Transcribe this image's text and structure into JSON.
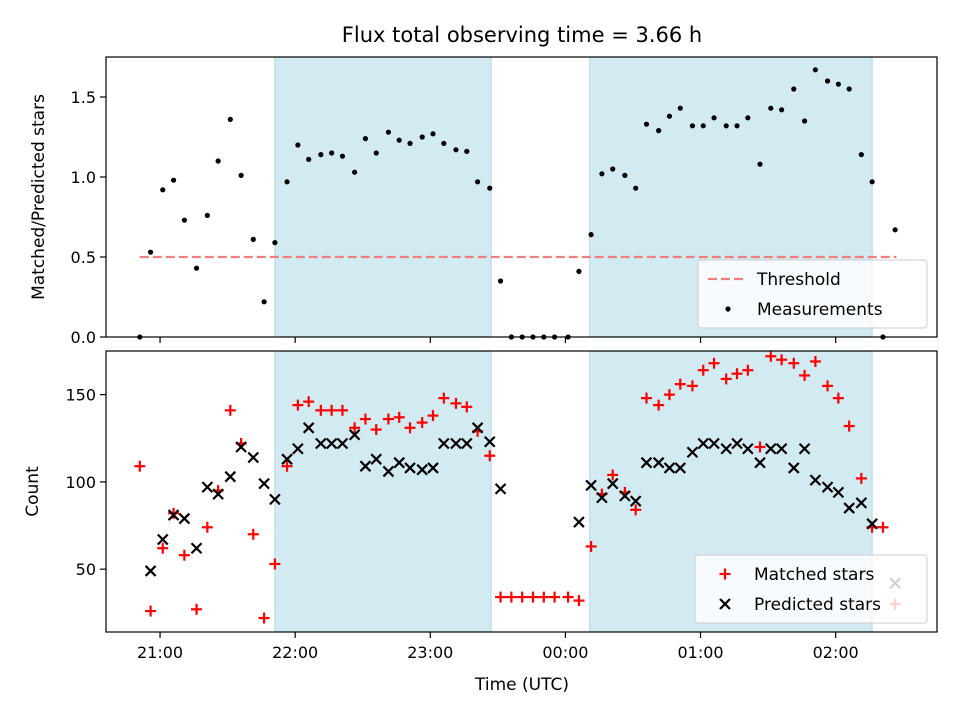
{
  "chart_data": {
    "title": "Flux total observing time = 3.66 h",
    "xlabel": "Time (UTC)",
    "x_unit": "hours since 00:00 UTC (negative = previous day)",
    "xlim": [
      -3.4,
      2.75
    ],
    "x_ticks": [
      {
        "value": -3.0,
        "label": "21:00"
      },
      {
        "value": -2.0,
        "label": "22:00"
      },
      {
        "value": -1.0,
        "label": "23:00"
      },
      {
        "value": 0.0,
        "label": "00:00"
      },
      {
        "value": 1.0,
        "label": "01:00"
      },
      {
        "value": 2.0,
        "label": "02:00"
      }
    ],
    "shaded_intervals": [
      [
        -2.15,
        -0.55
      ],
      [
        0.18,
        2.27
      ]
    ],
    "shade_color": "#add8e6",
    "panels": [
      {
        "type": "scatter",
        "ylabel": "Matched/Predicted stars",
        "ylim": [
          0,
          1.75
        ],
        "y_ticks": [
          {
            "value": 0.0,
            "label": "0.0"
          },
          {
            "value": 0.5,
            "label": "0.5"
          },
          {
            "value": 1.0,
            "label": "1.0"
          },
          {
            "value": 1.5,
            "label": "1.5"
          }
        ],
        "threshold": {
          "name": "Threshold",
          "value": 0.5,
          "x_range": [
            -3.15,
            2.45
          ],
          "color": "#f08080"
        },
        "legend_position": "lower right",
        "series": [
          {
            "name": "Measurements",
            "marker": "dot",
            "color": "#000000",
            "points": [
              [
                -3.15,
                0.0
              ],
              [
                -3.07,
                0.53
              ],
              [
                -2.98,
                0.92
              ],
              [
                -2.9,
                0.98
              ],
              [
                -2.82,
                0.73
              ],
              [
                -2.73,
                0.43
              ],
              [
                -2.65,
                0.76
              ],
              [
                -2.57,
                1.1
              ],
              [
                -2.48,
                1.36
              ],
              [
                -2.4,
                1.01
              ],
              [
                -2.31,
                0.61
              ],
              [
                -2.23,
                0.22
              ],
              [
                -2.15,
                0.59
              ],
              [
                -2.06,
                0.97
              ],
              [
                -1.98,
                1.2
              ],
              [
                -1.9,
                1.11
              ],
              [
                -1.81,
                1.14
              ],
              [
                -1.73,
                1.15
              ],
              [
                -1.65,
                1.13
              ],
              [
                -1.56,
                1.03
              ],
              [
                -1.48,
                1.24
              ],
              [
                -1.4,
                1.15
              ],
              [
                -1.31,
                1.28
              ],
              [
                -1.23,
                1.23
              ],
              [
                -1.15,
                1.21
              ],
              [
                -1.06,
                1.25
              ],
              [
                -0.98,
                1.27
              ],
              [
                -0.9,
                1.21
              ],
              [
                -0.81,
                1.17
              ],
              [
                -0.73,
                1.16
              ],
              [
                -0.65,
                0.97
              ],
              [
                -0.56,
                0.93
              ],
              [
                -0.48,
                0.35
              ],
              [
                -0.4,
                0.0
              ],
              [
                -0.32,
                0.0
              ],
              [
                -0.24,
                0.0
              ],
              [
                -0.16,
                0.0
              ],
              [
                -0.08,
                0.0
              ],
              [
                0.02,
                0.0
              ],
              [
                0.1,
                0.41
              ],
              [
                0.19,
                0.64
              ],
              [
                0.27,
                1.02
              ],
              [
                0.35,
                1.05
              ],
              [
                0.44,
                1.01
              ],
              [
                0.52,
                0.93
              ],
              [
                0.6,
                1.33
              ],
              [
                0.69,
                1.29
              ],
              [
                0.77,
                1.38
              ],
              [
                0.85,
                1.43
              ],
              [
                0.94,
                1.32
              ],
              [
                1.02,
                1.32
              ],
              [
                1.1,
                1.37
              ],
              [
                1.19,
                1.32
              ],
              [
                1.27,
                1.32
              ],
              [
                1.35,
                1.37
              ],
              [
                1.44,
                1.08
              ],
              [
                1.52,
                1.43
              ],
              [
                1.6,
                1.42
              ],
              [
                1.69,
                1.55
              ],
              [
                1.77,
                1.35
              ],
              [
                1.85,
                1.67
              ],
              [
                1.94,
                1.6
              ],
              [
                2.02,
                1.58
              ],
              [
                2.1,
                1.55
              ],
              [
                2.19,
                1.14
              ],
              [
                2.27,
                0.97
              ],
              [
                2.35,
                0.0
              ],
              [
                2.44,
                0.67
              ]
            ]
          }
        ]
      },
      {
        "type": "scatter",
        "ylabel": "Count",
        "ylim": [
          14,
          175
        ],
        "y_ticks": [
          {
            "value": 50,
            "label": "50"
          },
          {
            "value": 100,
            "label": "100"
          },
          {
            "value": 150,
            "label": "150"
          }
        ],
        "legend_position": "lower right",
        "series": [
          {
            "name": "Matched stars",
            "marker": "plus",
            "color": "#ff0000",
            "points": [
              [
                -3.15,
                109
              ],
              [
                -3.07,
                26
              ],
              [
                -2.98,
                62
              ],
              [
                -2.9,
                82
              ],
              [
                -2.82,
                58
              ],
              [
                -2.73,
                27
              ],
              [
                -2.65,
                74
              ],
              [
                -2.57,
                95
              ],
              [
                -2.48,
                141
              ],
              [
                -2.4,
                122
              ],
              [
                -2.31,
                70
              ],
              [
                -2.23,
                22
              ],
              [
                -2.15,
                53
              ],
              [
                -2.06,
                109
              ],
              [
                -1.98,
                144
              ],
              [
                -1.9,
                146
              ],
              [
                -1.81,
                141
              ],
              [
                -1.73,
                141
              ],
              [
                -1.65,
                141
              ],
              [
                -1.56,
                131
              ],
              [
                -1.48,
                136
              ],
              [
                -1.4,
                130
              ],
              [
                -1.31,
                136
              ],
              [
                -1.23,
                137
              ],
              [
                -1.15,
                131
              ],
              [
                -1.06,
                134
              ],
              [
                -0.98,
                138
              ],
              [
                -0.9,
                148
              ],
              [
                -0.81,
                145
              ],
              [
                -0.73,
                143
              ],
              [
                -0.65,
                129
              ],
              [
                -0.56,
                115
              ],
              [
                -0.48,
                34
              ],
              [
                -0.4,
                34
              ],
              [
                -0.32,
                34
              ],
              [
                -0.24,
                34
              ],
              [
                -0.16,
                34
              ],
              [
                -0.08,
                34
              ],
              [
                0.02,
                34
              ],
              [
                0.1,
                32
              ],
              [
                0.19,
                63
              ],
              [
                0.27,
                93
              ],
              [
                0.35,
                104
              ],
              [
                0.44,
                94
              ],
              [
                0.52,
                84
              ],
              [
                0.6,
                148
              ],
              [
                0.69,
                144
              ],
              [
                0.77,
                150
              ],
              [
                0.85,
                156
              ],
              [
                0.94,
                155
              ],
              [
                1.02,
                164
              ],
              [
                1.1,
                168
              ],
              [
                1.19,
                159
              ],
              [
                1.27,
                162
              ],
              [
                1.35,
                164
              ],
              [
                1.44,
                120
              ],
              [
                1.52,
                172
              ],
              [
                1.6,
                170
              ],
              [
                1.69,
                168
              ],
              [
                1.77,
                161
              ],
              [
                1.85,
                169
              ],
              [
                1.94,
                155
              ],
              [
                2.02,
                148
              ],
              [
                2.1,
                132
              ],
              [
                2.19,
                102
              ],
              [
                2.27,
                74
              ],
              [
                2.35,
                74
              ],
              [
                2.44,
                30
              ]
            ]
          },
          {
            "name": "Predicted stars",
            "marker": "x",
            "color": "#000000",
            "points": [
              [
                -3.07,
                49
              ],
              [
                -2.98,
                67
              ],
              [
                -2.9,
                81
              ],
              [
                -2.82,
                79
              ],
              [
                -2.73,
                62
              ],
              [
                -2.65,
                97
              ],
              [
                -2.57,
                93
              ],
              [
                -2.48,
                103
              ],
              [
                -2.4,
                120
              ],
              [
                -2.31,
                114
              ],
              [
                -2.23,
                99
              ],
              [
                -2.15,
                90
              ],
              [
                -2.06,
                113
              ],
              [
                -1.98,
                119
              ],
              [
                -1.9,
                131
              ],
              [
                -1.81,
                122
              ],
              [
                -1.73,
                122
              ],
              [
                -1.65,
                122
              ],
              [
                -1.56,
                127
              ],
              [
                -1.48,
                109
              ],
              [
                -1.4,
                113
              ],
              [
                -1.31,
                106
              ],
              [
                -1.23,
                111
              ],
              [
                -1.15,
                108
              ],
              [
                -1.06,
                107
              ],
              [
                -0.98,
                108
              ],
              [
                -0.9,
                122
              ],
              [
                -0.81,
                122
              ],
              [
                -0.73,
                122
              ],
              [
                -0.65,
                131
              ],
              [
                -0.56,
                123
              ],
              [
                -0.48,
                96
              ],
              [
                0.1,
                77
              ],
              [
                0.19,
                98
              ],
              [
                0.27,
                91
              ],
              [
                0.35,
                99
              ],
              [
                0.44,
                92
              ],
              [
                0.52,
                89
              ],
              [
                0.6,
                111
              ],
              [
                0.69,
                111
              ],
              [
                0.77,
                108
              ],
              [
                0.85,
                108
              ],
              [
                0.94,
                117
              ],
              [
                1.02,
                122
              ],
              [
                1.1,
                122
              ],
              [
                1.19,
                119
              ],
              [
                1.27,
                122
              ],
              [
                1.35,
                119
              ],
              [
                1.44,
                111
              ],
              [
                1.52,
                119
              ],
              [
                1.6,
                119
              ],
              [
                1.69,
                108
              ],
              [
                1.77,
                119
              ],
              [
                1.85,
                101
              ],
              [
                1.94,
                97
              ],
              [
                2.02,
                94
              ],
              [
                2.1,
                85
              ],
              [
                2.19,
                88
              ],
              [
                2.27,
                76
              ],
              [
                2.44,
                42
              ]
            ]
          }
        ]
      }
    ]
  }
}
